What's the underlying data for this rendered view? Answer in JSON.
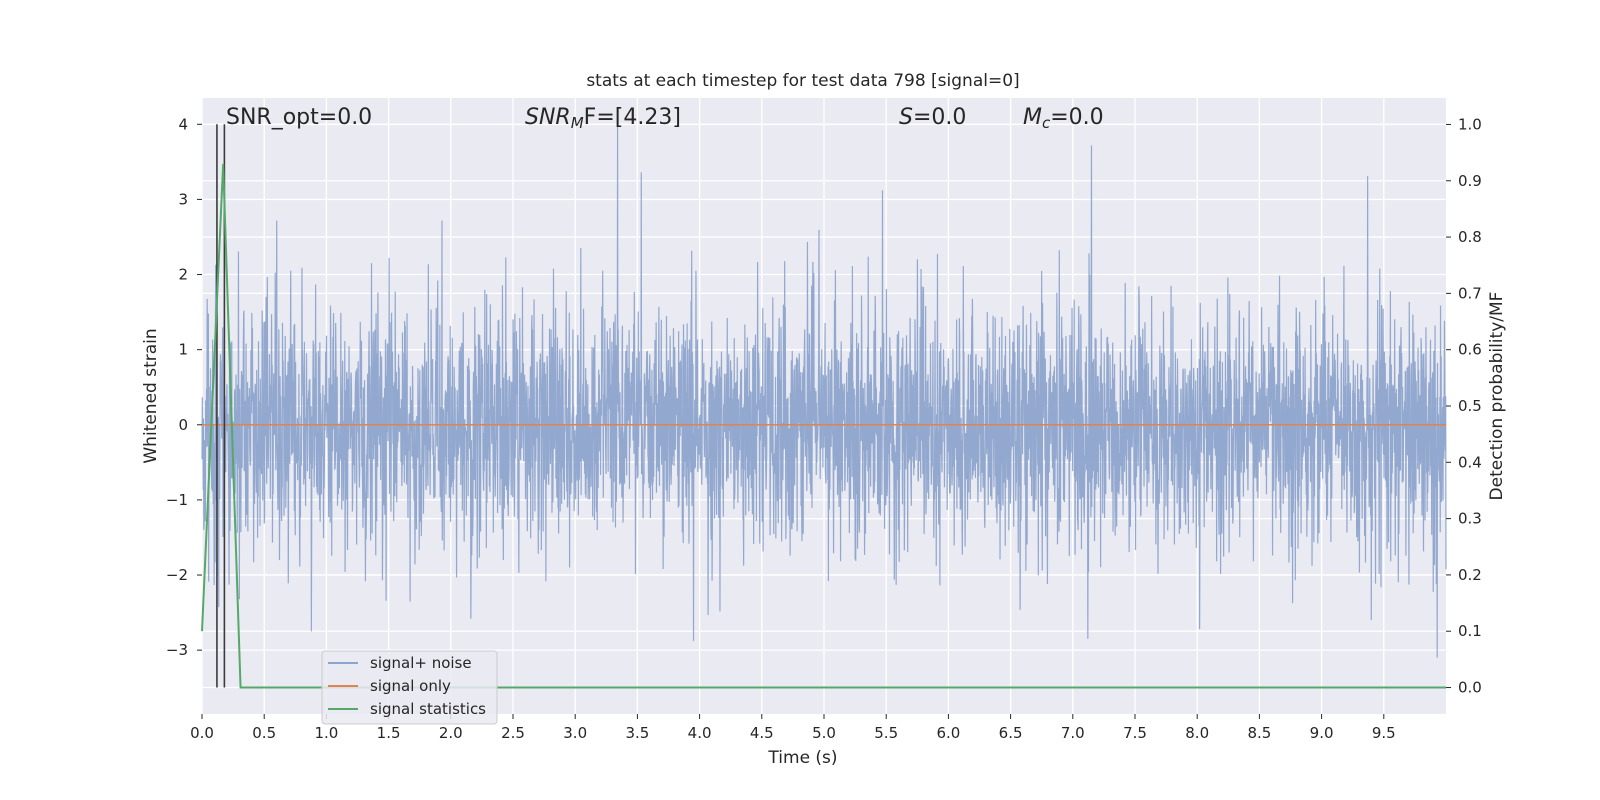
{
  "chart_data": {
    "type": "line",
    "title": "stats at each timestep for test data 798 [signal=0]",
    "xlabel": "Time (s)",
    "ylabel_left": "Whitened strain",
    "ylabel_right": "Detection probability/MF",
    "xlim": [
      0.0,
      10.0
    ],
    "ylim_left": [
      -3.85,
      4.35
    ],
    "ylim_right": [
      -0.047,
      1.047
    ],
    "x_ticks": [
      "0.0",
      "0.5",
      "1.0",
      "1.5",
      "2.0",
      "2.5",
      "3.0",
      "3.5",
      "4.0",
      "4.5",
      "5.0",
      "5.5",
      "6.0",
      "6.5",
      "7.0",
      "7.5",
      "8.0",
      "8.5",
      "9.0",
      "9.5"
    ],
    "x_tick_values": [
      0.0,
      0.5,
      1.0,
      1.5,
      2.0,
      2.5,
      3.0,
      3.5,
      4.0,
      4.5,
      5.0,
      5.5,
      6.0,
      6.5,
      7.0,
      7.5,
      8.0,
      8.5,
      9.0,
      9.5
    ],
    "y_ticks_left": [
      "4",
      "3",
      "2",
      "1",
      "0",
      "−1",
      "−2",
      "−3"
    ],
    "y_tick_values_left": [
      4,
      3,
      2,
      1,
      0,
      -1,
      -2,
      -3
    ],
    "y_ticks_right": [
      "1.0",
      "0.9",
      "0.8",
      "0.7",
      "0.6",
      "0.5",
      "0.4",
      "0.3",
      "0.2",
      "0.1",
      "0.0"
    ],
    "y_tick_values_right": [
      1.0,
      0.9,
      0.8,
      0.7,
      0.6,
      0.5,
      0.4,
      0.3,
      0.2,
      0.1,
      0.0
    ],
    "grid": true,
    "legend_position": "bottom-left",
    "annotations": {
      "snr_opt": "SNR_opt=0.0",
      "snr_mf_base": "SNR",
      "snr_mf_sub": "M",
      "snr_mf_rest": "F=[4.23]",
      "s_label": "S",
      "s_value": "=0.0",
      "mc_label": "M",
      "mc_sub": "c",
      "mc_value": "=0.0"
    },
    "vertical_markers_x": [
      0.12,
      0.18
    ],
    "series": [
      {
        "name": "signal+ noise",
        "color": "#8da4cc",
        "axis": "left",
        "kind": "noise",
        "envelope_std": 1.0,
        "peaks": [
          {
            "x": 3.34,
            "y": 4.05
          },
          {
            "x": 7.15,
            "y": 3.72
          },
          {
            "x": 3.53,
            "y": 3.36
          },
          {
            "x": 9.37,
            "y": 3.31
          },
          {
            "x": 5.47,
            "y": 3.12
          },
          {
            "x": 9.93,
            "y": -3.1
          },
          {
            "x": 3.95,
            "y": -2.88
          },
          {
            "x": 7.12,
            "y": -2.85
          },
          {
            "x": 0.88,
            "y": -2.75
          },
          {
            "x": 8.02,
            "y": -2.72
          },
          {
            "x": 9.4,
            "y": -2.6
          },
          {
            "x": 0.6,
            "y": 2.72
          },
          {
            "x": 1.93,
            "y": 2.72
          }
        ]
      },
      {
        "name": "signal only",
        "color": "#dd8452",
        "axis": "left",
        "x": [
          0.0,
          10.0
        ],
        "y": [
          0.0,
          0.0
        ]
      },
      {
        "name": "signal statistics",
        "color": "#55a868",
        "axis": "right",
        "x": [
          0.0,
          0.17,
          0.31,
          10.0
        ],
        "y": [
          0.1,
          0.93,
          0.0,
          0.0
        ]
      }
    ]
  }
}
